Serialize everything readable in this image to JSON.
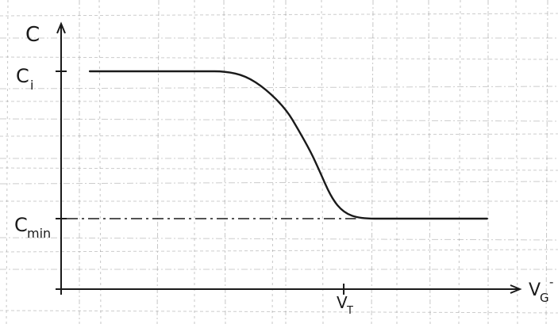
{
  "chart_data": {
    "type": "line",
    "title": "",
    "xlabel": "V",
    "xlabel_sub": "G",
    "xlabel_sup": "-",
    "ylabel": "C",
    "grid": true,
    "legend": "none",
    "y_markers": [
      {
        "label": "C",
        "sub": "i",
        "value": 1.0,
        "dashed": false
      },
      {
        "label": "C",
        "sub": "min",
        "value": 0.0,
        "dashed": true
      }
    ],
    "x_markers": [
      {
        "label": "V",
        "sub": "T",
        "value": 0.69
      }
    ],
    "xlim": [
      0,
      1.1
    ],
    "ylim": [
      -0.4,
      1.5
    ],
    "series": [
      {
        "x": [
          0.07,
          0.2,
          0.35,
          0.4,
          0.45,
          0.5,
          0.55,
          0.58,
          0.61,
          0.63,
          0.66,
          0.69,
          0.73,
          0.8,
          0.9,
          1.0,
          1.04
        ],
        "y": [
          1.0,
          1.0,
          1.0,
          1.0,
          0.97,
          0.88,
          0.74,
          0.6,
          0.45,
          0.33,
          0.14,
          0.04,
          0.0,
          0.0,
          0.0,
          0.0,
          0.0
        ]
      }
    ]
  },
  "colors": {
    "ink": "#1a1a1a",
    "grid": "#9a9a9a",
    "paper": "#ffffff"
  }
}
